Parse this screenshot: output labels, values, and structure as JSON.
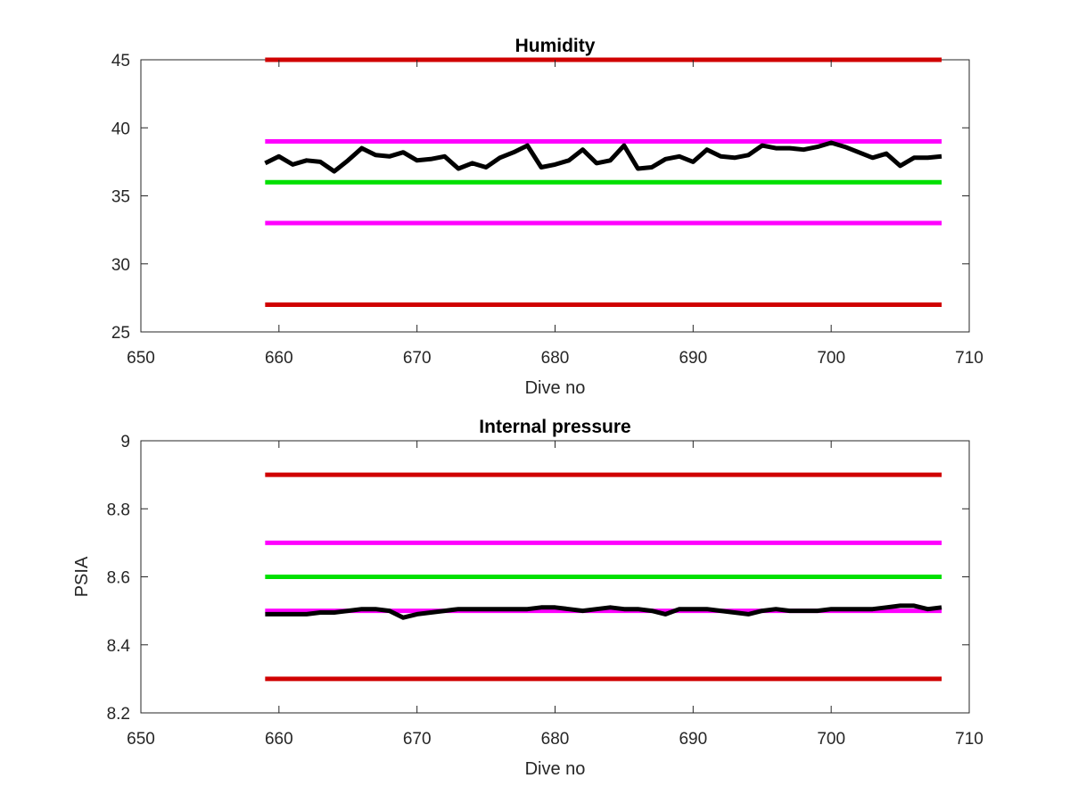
{
  "chart_data": [
    {
      "type": "line",
      "title": "Humidity",
      "xlabel": "Dive no",
      "ylabel": "",
      "xlim": [
        650,
        710
      ],
      "ylim": [
        25,
        45
      ],
      "xticks": [
        650,
        660,
        670,
        680,
        690,
        700,
        710
      ],
      "yticks": [
        25,
        30,
        35,
        40,
        45
      ],
      "grid": false,
      "x": [
        659,
        660,
        661,
        662,
        663,
        664,
        665,
        666,
        667,
        668,
        669,
        670,
        671,
        672,
        673,
        674,
        675,
        676,
        677,
        678,
        679,
        680,
        681,
        682,
        683,
        684,
        685,
        686,
        687,
        688,
        689,
        690,
        691,
        692,
        693,
        694,
        695,
        696,
        697,
        698,
        699,
        700,
        701,
        702,
        703,
        704,
        705,
        706,
        707,
        708
      ],
      "thresholds": [
        {
          "y": 45,
          "color": "#d00000"
        },
        {
          "y": 39,
          "color": "#ff00ff"
        },
        {
          "y": 36,
          "color": "#00e000"
        },
        {
          "y": 33,
          "color": "#ff00ff"
        },
        {
          "y": 27,
          "color": "#d00000"
        }
      ],
      "series": [
        {
          "color": "#000000",
          "values": [
            37.4,
            37.9,
            37.3,
            37.6,
            37.5,
            36.8,
            37.6,
            38.5,
            38.0,
            37.9,
            38.2,
            37.6,
            37.7,
            37.9,
            37.0,
            37.4,
            37.1,
            37.8,
            38.2,
            38.7,
            37.1,
            37.3,
            37.6,
            38.4,
            37.4,
            37.6,
            38.7,
            37.0,
            37.1,
            37.7,
            37.9,
            37.5,
            38.4,
            37.9,
            37.8,
            38.0,
            38.7,
            38.5,
            38.5,
            38.4,
            38.6,
            38.9,
            38.6,
            38.2,
            37.8,
            38.1,
            37.2,
            37.8,
            37.8,
            37.9
          ]
        }
      ]
    },
    {
      "type": "line",
      "title": "Internal pressure",
      "xlabel": "Dive no",
      "ylabel": "PSIA",
      "xlim": [
        650,
        710
      ],
      "ylim": [
        8.2,
        9
      ],
      "xticks": [
        650,
        660,
        670,
        680,
        690,
        700,
        710
      ],
      "yticks": [
        8.2,
        8.4,
        8.6,
        8.8,
        9
      ],
      "grid": false,
      "x": [
        659,
        660,
        661,
        662,
        663,
        664,
        665,
        666,
        667,
        668,
        669,
        670,
        671,
        672,
        673,
        674,
        675,
        676,
        677,
        678,
        679,
        680,
        681,
        682,
        683,
        684,
        685,
        686,
        687,
        688,
        689,
        690,
        691,
        692,
        693,
        694,
        695,
        696,
        697,
        698,
        699,
        700,
        701,
        702,
        703,
        704,
        705,
        706,
        707,
        708
      ],
      "thresholds": [
        {
          "y": 8.9,
          "color": "#d00000"
        },
        {
          "y": 8.7,
          "color": "#ff00ff"
        },
        {
          "y": 8.6,
          "color": "#00e000"
        },
        {
          "y": 8.5,
          "color": "#ff00ff"
        },
        {
          "y": 8.3,
          "color": "#d00000"
        }
      ],
      "series": [
        {
          "color": "#000000",
          "values": [
            8.49,
            8.49,
            8.49,
            8.49,
            8.495,
            8.495,
            8.5,
            8.505,
            8.505,
            8.5,
            8.48,
            8.49,
            8.495,
            8.5,
            8.505,
            8.505,
            8.505,
            8.505,
            8.505,
            8.505,
            8.51,
            8.51,
            8.505,
            8.5,
            8.505,
            8.51,
            8.505,
            8.505,
            8.5,
            8.49,
            8.505,
            8.505,
            8.505,
            8.5,
            8.495,
            8.49,
            8.5,
            8.505,
            8.5,
            8.5,
            8.5,
            8.505,
            8.505,
            8.505,
            8.505,
            8.51,
            8.515,
            8.515,
            8.505,
            8.51
          ]
        }
      ]
    }
  ]
}
